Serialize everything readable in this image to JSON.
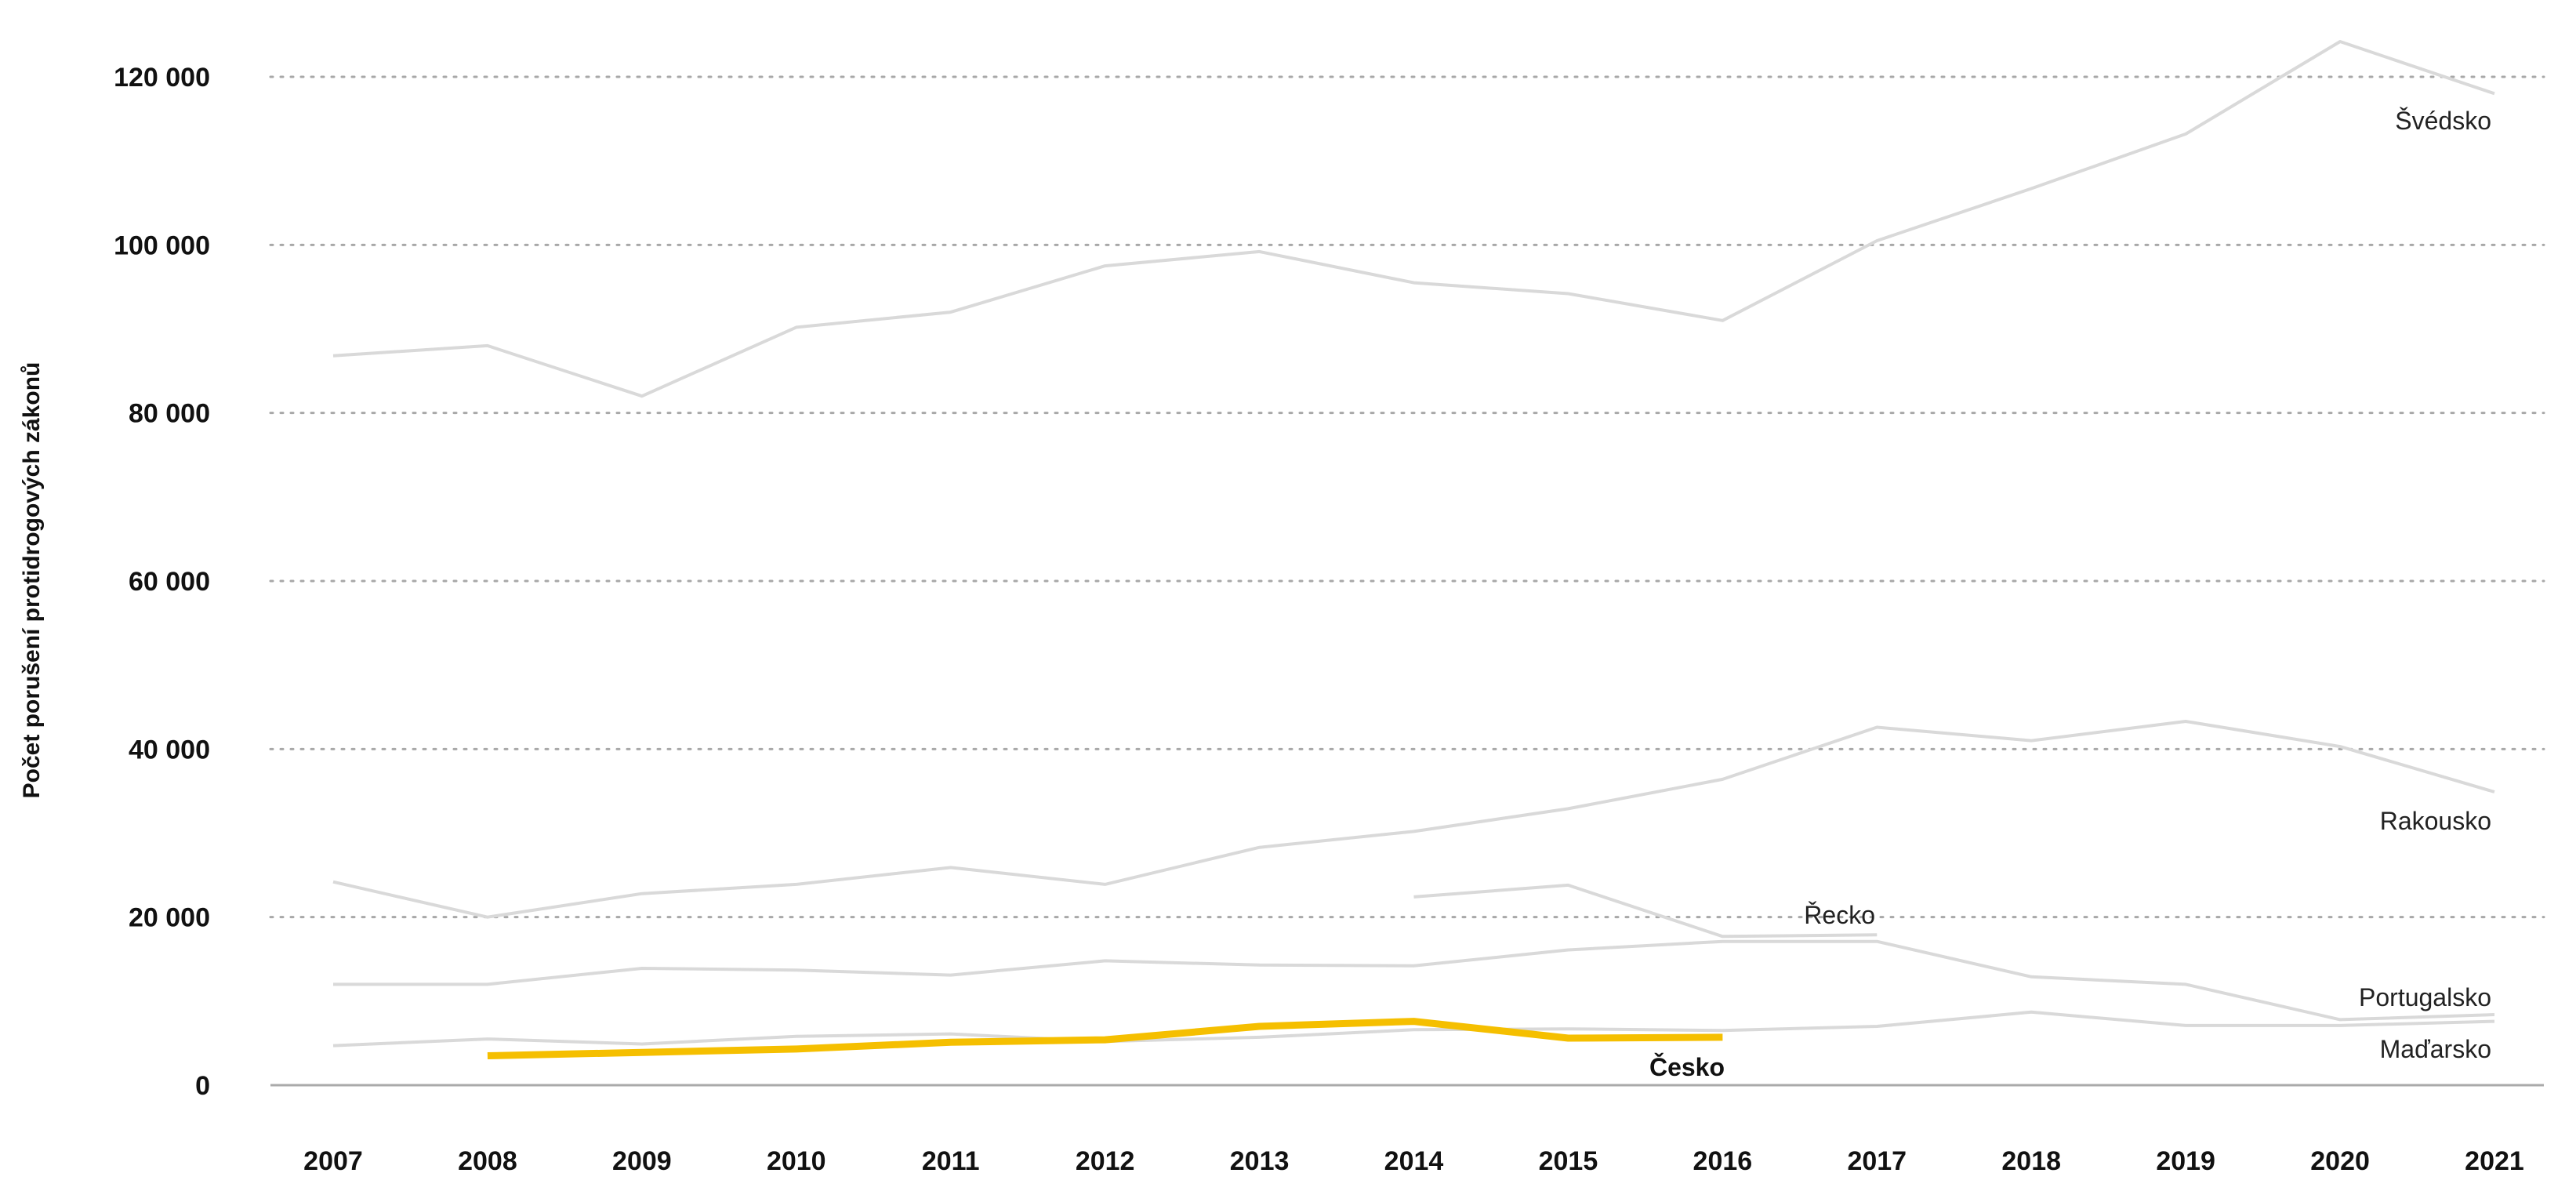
{
  "chart_data": {
    "type": "line",
    "title": "",
    "xlabel": "",
    "ylabel": "Počet porušení protidrogových zákonů",
    "x": [
      "2007",
      "2008",
      "2009",
      "2010",
      "2011",
      "2012",
      "2013",
      "2014",
      "2015",
      "2016",
      "2017",
      "2018",
      "2019",
      "2020",
      "2021"
    ],
    "yticks": [
      0,
      20000,
      40000,
      60000,
      80000,
      100000,
      120000
    ],
    "ytick_labels": [
      "0",
      "20 000",
      "40 000",
      "60 000",
      "80 000",
      "100 000",
      "120 000"
    ],
    "ylim": [
      0,
      120000
    ],
    "grid": "horizontal-dotted",
    "colors": {
      "highlight": "#F5BF00",
      "other": "#D9D9D9",
      "grid": "#A8A8A8",
      "baseline": "#AAAAAA"
    },
    "series": [
      {
        "name": "Švédsko",
        "highlight": false,
        "values": [
          86800,
          88000,
          82000,
          90200,
          92000,
          97500,
          99200,
          95500,
          94200,
          91000,
          100500,
          106700,
          113200,
          124200,
          118000
        ]
      },
      {
        "name": "Rakousko",
        "highlight": false,
        "values": [
          24200,
          20000,
          22800,
          23900,
          25900,
          23900,
          28300,
          30200,
          32900,
          36400,
          42600,
          41000,
          43300,
          40300,
          34900
        ]
      },
      {
        "name": "Řecko",
        "highlight": false,
        "values": [
          null,
          null,
          null,
          null,
          null,
          null,
          null,
          22400,
          23800,
          17700,
          17900,
          null,
          null,
          null,
          null
        ]
      },
      {
        "name": "Portugalsko",
        "highlight": false,
        "values": [
          12000,
          12000,
          13900,
          13700,
          13100,
          14800,
          14300,
          14200,
          16100,
          17100,
          17100,
          12900,
          12000,
          7800,
          8400
        ]
      },
      {
        "name": "Maďarsko",
        "highlight": false,
        "values": [
          4700,
          5500,
          4900,
          5800,
          6100,
          5200,
          5700,
          6600,
          6700,
          6500,
          7000,
          8700,
          7100,
          7100,
          7600
        ]
      },
      {
        "name": "Česko",
        "highlight": true,
        "values": [
          null,
          3500,
          3900,
          4300,
          5100,
          5400,
          7000,
          7600,
          5600,
          5700,
          null,
          null,
          null,
          null,
          null
        ]
      }
    ]
  }
}
